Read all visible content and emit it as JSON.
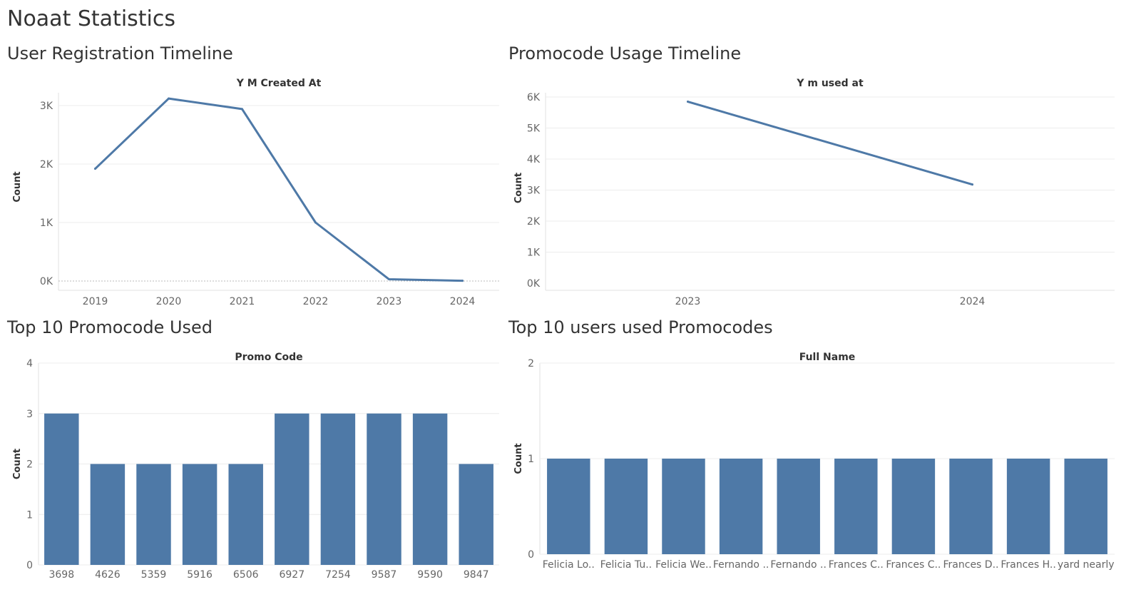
{
  "dashboard": {
    "title": "Noaat Statistics"
  },
  "colors": {
    "series": "#4e79a7",
    "grid": "#ececec",
    "axis": "#e0e0e0",
    "zero": "#bbbbbb"
  },
  "panels": {
    "registration": {
      "title": "User Registration Timeline"
    },
    "usage": {
      "title": "Promocode Usage Timeline"
    },
    "top_promo": {
      "title": "Top 10 Promocode Used"
    },
    "top_users": {
      "title": "Top 10 users used Promocodes"
    }
  },
  "chart_data": [
    {
      "id": "registration",
      "type": "line",
      "title": "User Registration Timeline",
      "xlabel": "Y M Created At",
      "ylabel": "Count",
      "categories": [
        "2019",
        "2020",
        "2021",
        "2022",
        "2023",
        "2024"
      ],
      "values": [
        1920,
        3120,
        2940,
        1000,
        30,
        5
      ],
      "ylim": [
        0,
        3200
      ],
      "yticks": [
        0,
        1000,
        2000,
        3000
      ],
      "ytick_labels": [
        "0K",
        "1K",
        "2K",
        "3K"
      ],
      "zero_line": true,
      "grid": true
    },
    {
      "id": "usage",
      "type": "line",
      "title": "Promocode Usage Timeline",
      "xlabel": "Y m used at",
      "ylabel": "Count",
      "categories": [
        "2023",
        "2024"
      ],
      "values": [
        5850,
        3180
      ],
      "ylim": [
        0,
        6000
      ],
      "yticks": [
        0,
        1000,
        2000,
        3000,
        4000,
        5000,
        6000
      ],
      "ytick_labels": [
        "0K",
        "1K",
        "2K",
        "3K",
        "4K",
        "5K",
        "6K"
      ],
      "zero_line": false,
      "grid": true
    },
    {
      "id": "top_promo",
      "type": "bar",
      "title": "Top 10 Promocode Used",
      "xlabel": "Promo Code",
      "ylabel": "Count",
      "categories": [
        "3698",
        "4626",
        "5359",
        "5916",
        "6506",
        "6927",
        "7254",
        "9587",
        "9590",
        "9847"
      ],
      "values": [
        3,
        2,
        2,
        2,
        2,
        3,
        3,
        3,
        3,
        2
      ],
      "ylim": [
        0,
        4
      ],
      "yticks": [
        0,
        1,
        2,
        3,
        4
      ],
      "ytick_labels": [
        "0",
        "1",
        "2",
        "3",
        "4"
      ],
      "grid": true
    },
    {
      "id": "top_users",
      "type": "bar",
      "title": "Top 10 users used Promocodes",
      "xlabel": "Full Name",
      "ylabel": "Count",
      "categories": [
        "Felicia Lo..",
        "Felicia Tu..",
        "Felicia We..",
        "Fernando ..",
        "Fernando ..",
        "Frances C..",
        "Frances C..",
        "Frances D..",
        "Frances H..",
        "yard nearly"
      ],
      "values": [
        1,
        1,
        1,
        1,
        1,
        1,
        1,
        1,
        1,
        1
      ],
      "ylim": [
        0,
        2
      ],
      "yticks": [
        0,
        1,
        2
      ],
      "ytick_labels": [
        "0",
        "1",
        "2"
      ],
      "grid": true
    }
  ]
}
